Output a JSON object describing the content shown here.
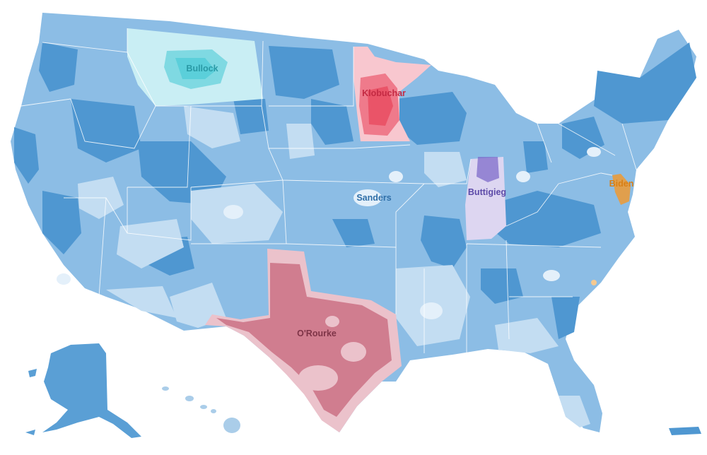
{
  "map": {
    "labels": {
      "bullock": "Bullock",
      "klobuchar": "Klobuchar",
      "sanders": "Sanders",
      "buttigieg": "Buttigieg",
      "biden": "Biden",
      "orourke": "O'Rourke"
    },
    "colors": {
      "sanders_dark": "#4f97d1",
      "sanders_mid": "#86b9e3",
      "sanders_light": "#c2dcf2",
      "sanders_pale": "#e4f0fa",
      "bullock": "#3ec7d4",
      "bullock_light": "#c9eef4",
      "klobuchar": "#e8445a",
      "klobuchar_light": "#f8c7cf",
      "buttigieg": "#7d6bc9",
      "buttigieg_light": "#ddd6f1",
      "biden": "#ef9a33",
      "orourke": "#d07d8f",
      "orourke_light": "#ebc2cb"
    }
  }
}
